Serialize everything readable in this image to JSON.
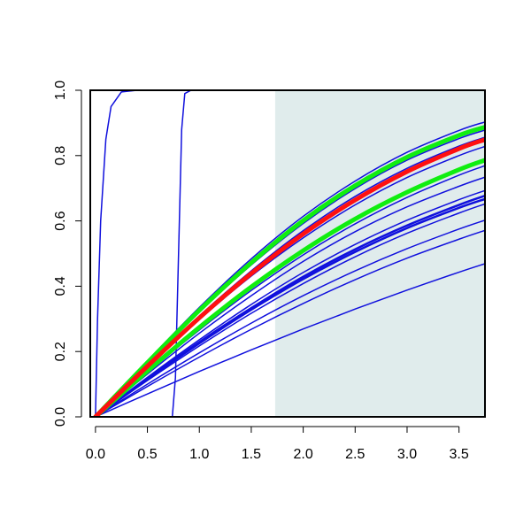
{
  "chart_data": {
    "type": "line",
    "title": "",
    "xlabel": "",
    "ylabel": "",
    "xlim": [
      -0.05,
      3.75
    ],
    "ylim": [
      0.0,
      1.0
    ],
    "x_ticks": [
      "0.0",
      "0.5",
      "1.0",
      "1.5",
      "2.0",
      "2.5",
      "3.0",
      "3.5"
    ],
    "y_ticks": [
      "0.0",
      "0.2",
      "0.4",
      "0.6",
      "0.8",
      "1.0"
    ],
    "shaded_region": {
      "x_from": 1.73,
      "x_to": 3.75,
      "color": "#e0ecec"
    },
    "colors": {
      "blue": "#1010dd",
      "red": "#ff1010",
      "green": "#10ee10"
    },
    "series": [
      {
        "kind": "step",
        "color": "blue",
        "width": 1.5,
        "points": [
          [
            0.0,
            0.0
          ],
          [
            0.02,
            0.3
          ],
          [
            0.05,
            0.6
          ],
          [
            0.1,
            0.85
          ],
          [
            0.15,
            0.95
          ],
          [
            0.25,
            0.995
          ],
          [
            0.4,
            1.0
          ],
          [
            3.75,
            1.0
          ]
        ]
      },
      {
        "kind": "step",
        "color": "blue",
        "width": 1.5,
        "points": [
          [
            0.0,
            0.0
          ],
          [
            0.74,
            0.0
          ],
          [
            0.77,
            0.12
          ],
          [
            0.8,
            0.5
          ],
          [
            0.83,
            0.88
          ],
          [
            0.86,
            0.99
          ],
          [
            0.92,
            1.0
          ],
          [
            3.75,
            1.0
          ]
        ]
      },
      {
        "kind": "curve",
        "color": "blue",
        "width": 1.5,
        "points": [
          [
            0.0,
            0.0
          ],
          [
            0.5,
            0.131
          ],
          [
            1.0,
            0.256
          ],
          [
            1.5,
            0.371
          ],
          [
            2.0,
            0.476
          ],
          [
            2.5,
            0.567
          ],
          [
            3.0,
            0.643
          ],
          [
            3.5,
            0.706
          ],
          [
            3.75,
            0.734
          ]
        ]
      },
      {
        "kind": "curve",
        "color": "blue",
        "width": 1.5,
        "points": [
          [
            0.0,
            0.0
          ],
          [
            0.5,
            0.121
          ],
          [
            1.0,
            0.236
          ],
          [
            1.5,
            0.344
          ],
          [
            2.0,
            0.442
          ],
          [
            2.5,
            0.528
          ],
          [
            3.0,
            0.602
          ],
          [
            3.5,
            0.665
          ],
          [
            3.75,
            0.693
          ]
        ]
      },
      {
        "kind": "curve",
        "color": "blue",
        "width": 1.5,
        "points": [
          [
            0.0,
            0.0
          ],
          [
            0.5,
            0.111
          ],
          [
            1.0,
            0.217
          ],
          [
            1.5,
            0.317
          ],
          [
            2.0,
            0.408
          ],
          [
            2.5,
            0.49
          ],
          [
            3.0,
            0.562
          ],
          [
            3.5,
            0.624
          ],
          [
            3.75,
            0.652
          ]
        ]
      },
      {
        "kind": "curve",
        "color": "blue",
        "width": 2.5,
        "points": [
          [
            0.0,
            0.0
          ],
          [
            0.5,
            0.115
          ],
          [
            1.0,
            0.225
          ],
          [
            1.5,
            0.328
          ],
          [
            2.0,
            0.422
          ],
          [
            2.5,
            0.505
          ],
          [
            3.0,
            0.578
          ],
          [
            3.5,
            0.64
          ],
          [
            3.75,
            0.667
          ]
        ]
      },
      {
        "kind": "curve",
        "color": "blue",
        "width": 2.5,
        "points": [
          [
            0.0,
            0.0
          ],
          [
            0.5,
            0.117
          ],
          [
            1.0,
            0.229
          ],
          [
            1.5,
            0.333
          ],
          [
            2.0,
            0.429
          ],
          [
            2.5,
            0.513
          ],
          [
            3.0,
            0.586
          ],
          [
            3.5,
            0.649
          ],
          [
            3.75,
            0.677
          ]
        ]
      },
      {
        "kind": "curve",
        "color": "blue",
        "width": 1.5,
        "points": [
          [
            0.0,
            0.0
          ],
          [
            0.5,
            0.1
          ],
          [
            1.0,
            0.196
          ],
          [
            1.5,
            0.287
          ],
          [
            2.0,
            0.371
          ],
          [
            2.5,
            0.447
          ],
          [
            3.0,
            0.515
          ],
          [
            3.5,
            0.575
          ],
          [
            3.75,
            0.602
          ]
        ]
      },
      {
        "kind": "curve",
        "color": "blue",
        "width": 1.5,
        "points": [
          [
            0.0,
            0.0
          ],
          [
            0.5,
            0.093
          ],
          [
            1.0,
            0.183
          ],
          [
            1.5,
            0.268
          ],
          [
            2.0,
            0.347
          ],
          [
            2.5,
            0.42
          ],
          [
            3.0,
            0.486
          ],
          [
            3.5,
            0.544
          ],
          [
            3.75,
            0.571
          ]
        ]
      },
      {
        "kind": "curve",
        "color": "blue",
        "width": 1.5,
        "points": [
          [
            0.0,
            0.0
          ],
          [
            0.5,
            0.07
          ],
          [
            1.0,
            0.139
          ],
          [
            1.5,
            0.205
          ],
          [
            2.0,
            0.269
          ],
          [
            2.5,
            0.33
          ],
          [
            3.0,
            0.388
          ],
          [
            3.5,
            0.443
          ],
          [
            3.75,
            0.469
          ]
        ]
      },
      {
        "kind": "curve",
        "color": "blue",
        "width": 1.5,
        "points": [
          [
            0.0,
            0.0
          ],
          [
            0.5,
            0.157
          ],
          [
            1.0,
            0.309
          ],
          [
            1.5,
            0.447
          ],
          [
            2.0,
            0.57
          ],
          [
            2.5,
            0.675
          ],
          [
            3.0,
            0.761
          ],
          [
            3.5,
            0.829
          ],
          [
            3.75,
            0.856
          ]
        ]
      },
      {
        "kind": "curve",
        "color": "blue",
        "width": 1.5,
        "points": [
          [
            0.0,
            0.0
          ],
          [
            0.5,
            0.164
          ],
          [
            1.0,
            0.321
          ],
          [
            1.5,
            0.465
          ],
          [
            2.0,
            0.592
          ],
          [
            2.5,
            0.699
          ],
          [
            3.0,
            0.786
          ],
          [
            3.5,
            0.852
          ],
          [
            3.75,
            0.878
          ]
        ]
      },
      {
        "kind": "curve",
        "color": "blue",
        "width": 1.5,
        "points": [
          [
            0.0,
            0.0
          ],
          [
            0.5,
            0.168
          ],
          [
            1.0,
            0.329
          ],
          [
            1.5,
            0.476
          ],
          [
            2.0,
            0.605
          ],
          [
            2.5,
            0.713
          ],
          [
            3.0,
            0.8
          ],
          [
            3.5,
            0.866
          ],
          [
            3.75,
            0.892
          ]
        ]
      },
      {
        "kind": "curve",
        "color": "blue",
        "width": 1.5,
        "points": [
          [
            0.0,
            0.0
          ],
          [
            0.5,
            0.171
          ],
          [
            1.0,
            0.335
          ],
          [
            1.5,
            0.484
          ],
          [
            2.0,
            0.614
          ],
          [
            2.5,
            0.722
          ],
          [
            3.0,
            0.81
          ],
          [
            3.5,
            0.877
          ],
          [
            3.75,
            0.903
          ]
        ]
      },
      {
        "kind": "curve",
        "color": "blue",
        "width": 1.5,
        "points": [
          [
            0.0,
            0.0
          ],
          [
            0.5,
            0.152
          ],
          [
            1.0,
            0.298
          ],
          [
            1.5,
            0.431
          ],
          [
            2.0,
            0.548
          ],
          [
            2.5,
            0.649
          ],
          [
            3.0,
            0.733
          ],
          [
            3.5,
            0.8
          ],
          [
            3.75,
            0.828
          ]
        ]
      },
      {
        "kind": "curve",
        "color": "blue",
        "width": 1.5,
        "points": [
          [
            0.0,
            0.0
          ],
          [
            0.5,
            0.14
          ],
          [
            1.0,
            0.274
          ],
          [
            1.5,
            0.398
          ],
          [
            2.0,
            0.508
          ],
          [
            2.5,
            0.605
          ],
          [
            3.0,
            0.687
          ],
          [
            3.5,
            0.754
          ],
          [
            3.75,
            0.783
          ]
        ]
      },
      {
        "kind": "curve",
        "color": "blue",
        "width": 1.5,
        "points": [
          [
            0.0,
            0.0
          ],
          [
            0.5,
            0.136
          ],
          [
            1.0,
            0.266
          ],
          [
            1.5,
            0.387
          ],
          [
            2.0,
            0.496
          ],
          [
            2.5,
            0.591
          ],
          [
            3.0,
            0.672
          ],
          [
            3.5,
            0.74
          ],
          [
            3.75,
            0.769
          ]
        ]
      },
      {
        "kind": "curve",
        "color": "green",
        "width": 5,
        "points": [
          [
            0.0,
            0.0
          ],
          [
            0.5,
            0.166
          ],
          [
            1.0,
            0.326
          ],
          [
            1.5,
            0.472
          ],
          [
            2.0,
            0.601
          ],
          [
            2.5,
            0.708
          ],
          [
            3.0,
            0.795
          ],
          [
            3.5,
            0.862
          ],
          [
            3.75,
            0.887
          ]
        ]
      },
      {
        "kind": "curve",
        "color": "green",
        "width": 5,
        "points": [
          [
            0.0,
            0.0
          ],
          [
            0.5,
            0.14
          ],
          [
            1.0,
            0.274
          ],
          [
            1.5,
            0.398
          ],
          [
            2.0,
            0.509
          ],
          [
            2.5,
            0.606
          ],
          [
            3.0,
            0.688
          ],
          [
            3.5,
            0.757
          ],
          [
            3.75,
            0.786
          ]
        ]
      },
      {
        "kind": "curve",
        "color": "red",
        "width": 5,
        "points": [
          [
            0.0,
            0.0
          ],
          [
            0.5,
            0.155
          ],
          [
            1.0,
            0.303
          ],
          [
            1.5,
            0.439
          ],
          [
            2.0,
            0.56
          ],
          [
            2.5,
            0.664
          ],
          [
            3.0,
            0.751
          ],
          [
            3.5,
            0.821
          ],
          [
            3.75,
            0.849
          ]
        ]
      }
    ]
  }
}
